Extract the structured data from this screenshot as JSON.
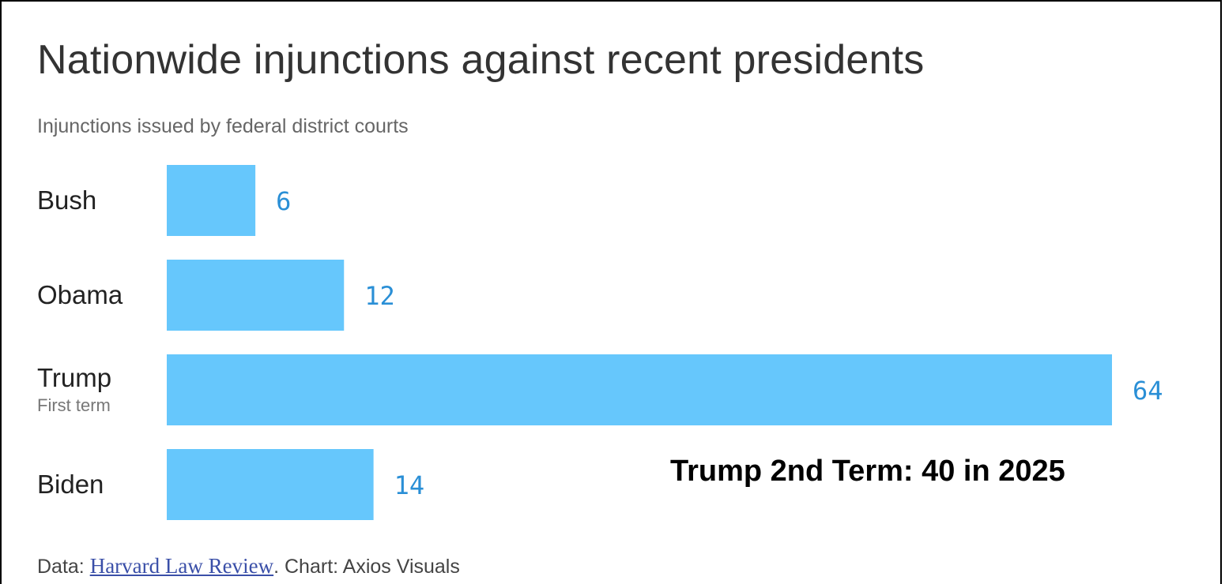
{
  "chart_data": {
    "type": "bar",
    "orientation": "horizontal",
    "title": "Nationwide injunctions against recent presidents",
    "subtitle": "Injunctions issued by federal district courts",
    "categories": [
      "Bush",
      "Obama",
      "Trump",
      "Biden"
    ],
    "category_sublabels": [
      "",
      "",
      "First term",
      ""
    ],
    "values": [
      6,
      12,
      64,
      14
    ],
    "value_labels": [
      "6",
      "12",
      "64",
      "14"
    ],
    "xlim": [
      0,
      64
    ],
    "grid": false,
    "legend": "none",
    "annotation": "Trump 2nd Term: 40 in 2025",
    "colors": {
      "bar": "#66c7fc",
      "value_label": "#2a8fd6",
      "category_label": "#222222"
    }
  },
  "footer": {
    "data_prefix": "Data: ",
    "source_name": "Harvard Law Review",
    "chart_credit": ". Chart: Axios Visuals"
  }
}
